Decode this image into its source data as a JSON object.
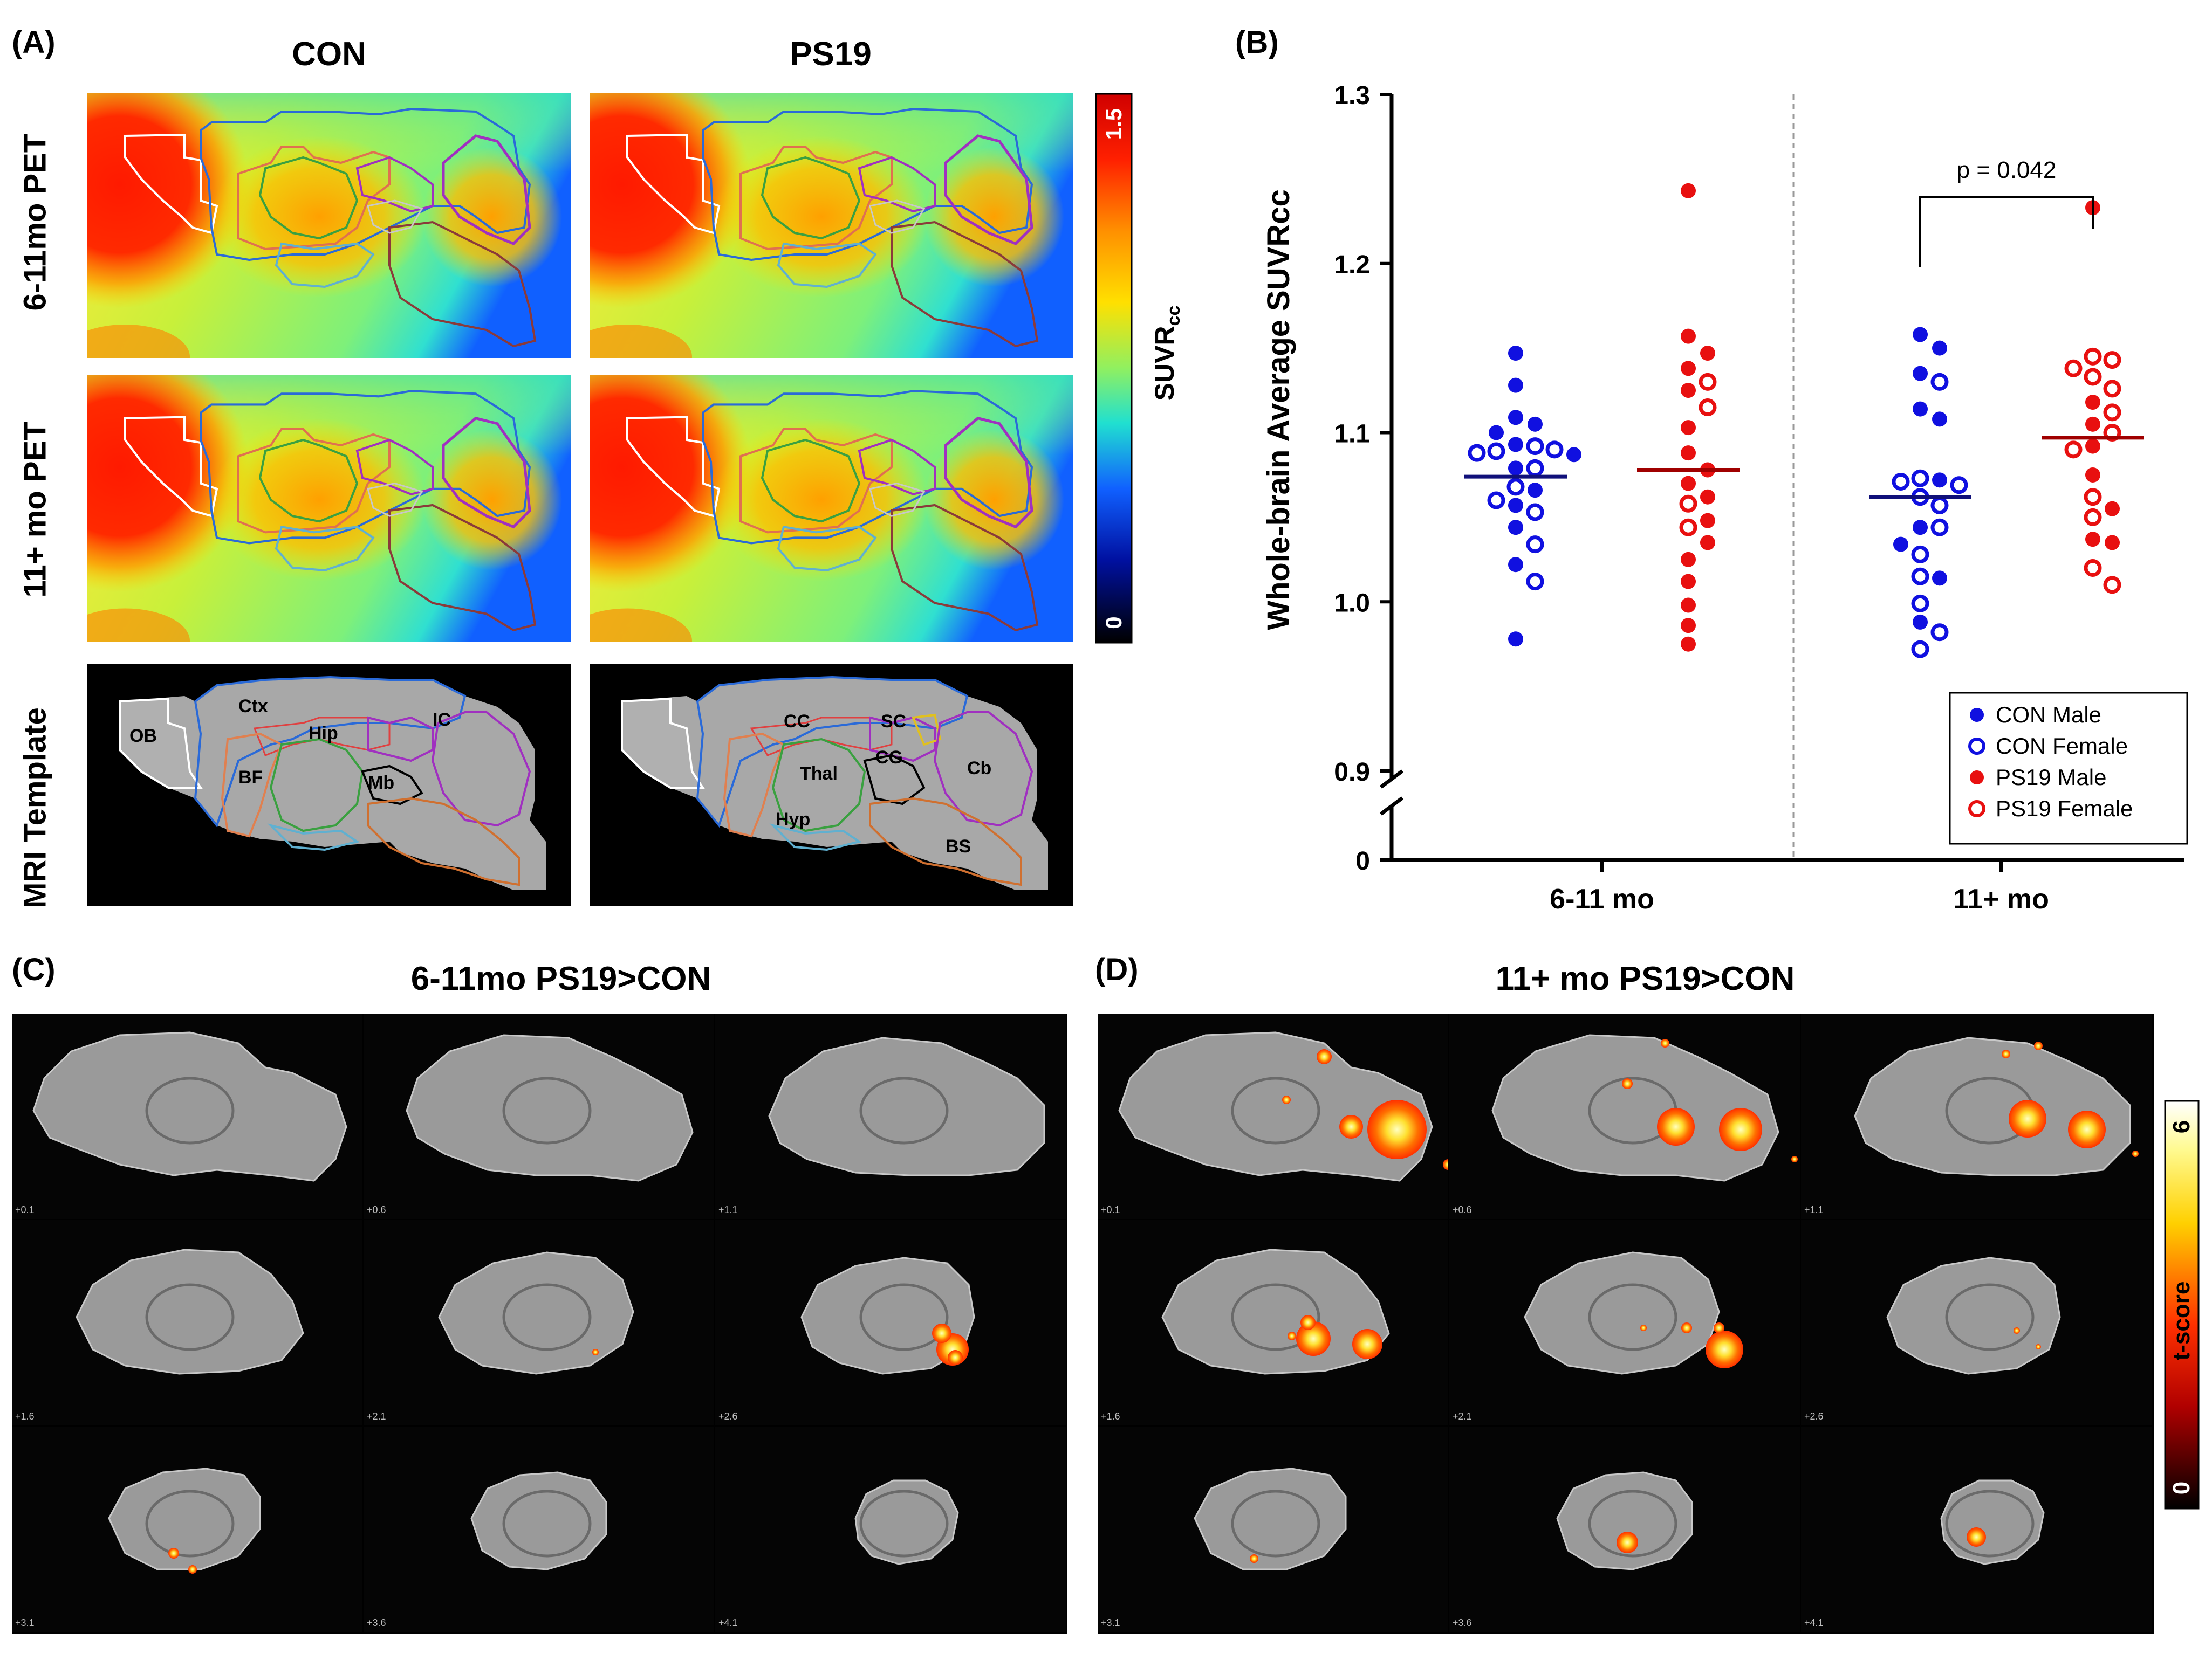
{
  "panel_a": {
    "label": "(A)",
    "col_titles": [
      "CON",
      "PS19"
    ],
    "row_labels": [
      "6-11mo PET",
      "11+ mo PET",
      "MRI Template"
    ],
    "colorbar": {
      "max": "1.5",
      "min": "0",
      "label_main": "SUVR",
      "label_sub": "cc"
    },
    "regions_con": [
      "Ctx",
      "OB",
      "Hip",
      "IC",
      "BF",
      "Mb"
    ],
    "regions_ps19": [
      "CC",
      "SC",
      "Thal",
      "CG",
      "Cb",
      "Hyp",
      "BS"
    ]
  },
  "panel_b": {
    "label": "(B)"
  },
  "panel_c": {
    "label": "(C)",
    "title": "6-11mo PS19>CON",
    "slices": [
      "+0.1",
      "+0.6",
      "+1.1",
      "+1.6",
      "+2.1",
      "+2.6",
      "+3.1",
      "+3.6",
      "+4.1"
    ]
  },
  "panel_d": {
    "label": "(D)",
    "title": "11+ mo PS19>CON",
    "slices": [
      "+0.1",
      "+0.6",
      "+1.1",
      "+1.6",
      "+2.1",
      "+2.6",
      "+3.1",
      "+3.6",
      "+4.1"
    ],
    "colorbar": {
      "max": "6",
      "min": "0",
      "label": "t-score"
    }
  },
  "chart_data": {
    "type": "scatter",
    "title": "",
    "ylabel": "Whole-brain Average SUVRcc",
    "xlabel": "",
    "ylim": [
      0.9,
      1.3
    ],
    "yticks": [
      "1.3",
      "1.2",
      "1.1",
      "1.0",
      "0.9"
    ],
    "ybreak_label": "0",
    "groups": [
      "6-11 mo",
      "11+ mo"
    ],
    "annotation": "p = 0.042",
    "legend": [
      {
        "name": "CON Male",
        "color": "#1010e0",
        "fill": "filled"
      },
      {
        "name": "CON Female",
        "color": "#1010e0",
        "fill": "open"
      },
      {
        "name": "PS19 Male",
        "color": "#e81010",
        "fill": "filled"
      },
      {
        "name": "PS19 Female",
        "color": "#e81010",
        "fill": "open"
      }
    ],
    "series": [
      {
        "name": "CON 6-11 mo",
        "group": "6-11 mo",
        "color": "#1010e0",
        "mean": 1.074,
        "filled": [
          1.147,
          1.128,
          1.109,
          1.105,
          1.1,
          1.093,
          1.087,
          1.079,
          1.066,
          1.057,
          1.044,
          1.022,
          0.978
        ],
        "open": [
          1.092,
          1.09,
          1.089,
          1.088,
          1.079,
          1.068,
          1.06,
          1.053,
          1.034,
          1.012
        ]
      },
      {
        "name": "PS19 6-11 mo",
        "group": "6-11 mo",
        "color": "#e81010",
        "mean": 1.078,
        "filled": [
          1.243,
          1.157,
          1.147,
          1.138,
          1.125,
          1.103,
          1.088,
          1.078,
          1.07,
          1.062,
          1.048,
          1.035,
          1.025,
          1.012,
          0.998,
          0.986,
          0.975
        ],
        "open": [
          1.13,
          1.115,
          1.058,
          1.044
        ]
      },
      {
        "name": "CON 11+ mo",
        "group": "11+ mo",
        "color": "#1010e0",
        "mean": 1.062,
        "filled": [
          1.158,
          1.15,
          1.135,
          1.114,
          1.108,
          1.072,
          1.044,
          1.034,
          1.014,
          0.988
        ],
        "open": [
          1.13,
          1.073,
          1.071,
          1.069,
          1.062,
          1.057,
          1.044,
          1.028,
          1.015,
          0.999,
          0.982,
          0.972
        ]
      },
      {
        "name": "PS19 11+ mo",
        "group": "11+ mo",
        "color": "#e81010",
        "mean": 1.097,
        "filled": [
          1.233,
          1.118,
          1.105,
          1.092,
          1.075,
          1.055,
          1.037,
          1.035
        ],
        "open": [
          1.145,
          1.143,
          1.138,
          1.133,
          1.126,
          1.112,
          1.1,
          1.09,
          1.062,
          1.05,
          1.02,
          1.01
        ]
      }
    ]
  }
}
